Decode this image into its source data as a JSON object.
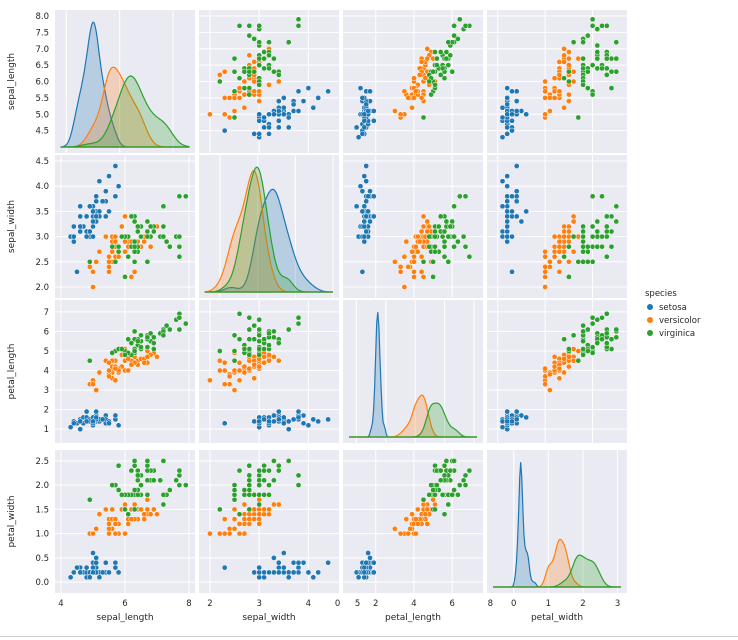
{
  "chart_data": {
    "type": "scatter",
    "variables": [
      "sepal_length",
      "sepal_width",
      "petal_length",
      "petal_width"
    ],
    "axes": {
      "sepal_length": {
        "label": "sepal_length",
        "range": [
          4.0,
          8.0
        ],
        "ticks": [
          "4.5",
          "5.0",
          "5.5",
          "6.0",
          "6.5",
          "7.0",
          "7.5",
          "8.0"
        ],
        "xticks": [
          "4",
          "6",
          "8"
        ]
      },
      "sepal_width": {
        "label": "sepal_width",
        "range": [
          1.9,
          4.5
        ],
        "ticks": [
          "2.0",
          "2.5",
          "3.0",
          "3.5",
          "4.0",
          "4.5"
        ],
        "xticks": [
          "2",
          "3",
          "4",
          "5"
        ]
      },
      "petal_length": {
        "label": "petal_length",
        "range": [
          0.6,
          7.3
        ],
        "ticks": [
          "1",
          "2",
          "3",
          "4",
          "5",
          "6",
          "7"
        ],
        "xticks": [
          "0",
          "2",
          "4",
          "6",
          "8"
        ]
      },
      "petal_width": {
        "label": "petal_width",
        "range": [
          -0.1,
          2.6
        ],
        "ticks": [
          "0.0",
          "0.5",
          "1.0",
          "1.5",
          "2.0",
          "2.5"
        ],
        "xticks": [
          "0",
          "1",
          "2",
          "3"
        ]
      }
    },
    "diag_x_ranges": {
      "sepal_length": [
        3.8,
        8.6
      ],
      "sepal_width": [
        1.6,
        5.0
      ],
      "petal_length": [
        -0.5,
        8.2
      ],
      "petal_width": [
        -0.6,
        3.1
      ]
    },
    "series": [
      {
        "name": "setosa",
        "color": "#1f77b4",
        "points": [
          [
            5.1,
            3.5,
            1.4,
            0.2
          ],
          [
            4.9,
            3.0,
            1.4,
            0.2
          ],
          [
            4.7,
            3.2,
            1.3,
            0.2
          ],
          [
            4.6,
            3.1,
            1.5,
            0.2
          ],
          [
            5.0,
            3.6,
            1.4,
            0.2
          ],
          [
            5.4,
            3.9,
            1.7,
            0.4
          ],
          [
            4.6,
            3.4,
            1.4,
            0.3
          ],
          [
            5.0,
            3.4,
            1.5,
            0.2
          ],
          [
            4.4,
            2.9,
            1.4,
            0.2
          ],
          [
            4.9,
            3.1,
            1.5,
            0.1
          ],
          [
            5.4,
            3.7,
            1.5,
            0.2
          ],
          [
            4.8,
            3.4,
            1.6,
            0.2
          ],
          [
            4.8,
            3.0,
            1.4,
            0.1
          ],
          [
            4.3,
            3.0,
            1.1,
            0.1
          ],
          [
            5.8,
            4.0,
            1.2,
            0.2
          ],
          [
            5.7,
            4.4,
            1.5,
            0.4
          ],
          [
            5.4,
            3.9,
            1.3,
            0.4
          ],
          [
            5.1,
            3.5,
            1.4,
            0.3
          ],
          [
            5.7,
            3.8,
            1.7,
            0.3
          ],
          [
            5.1,
            3.8,
            1.5,
            0.3
          ],
          [
            5.4,
            3.4,
            1.7,
            0.2
          ],
          [
            5.1,
            3.7,
            1.5,
            0.4
          ],
          [
            4.6,
            3.6,
            1.0,
            0.2
          ],
          [
            5.1,
            3.3,
            1.7,
            0.5
          ],
          [
            4.8,
            3.4,
            1.9,
            0.2
          ],
          [
            5.0,
            3.0,
            1.6,
            0.2
          ],
          [
            5.0,
            3.4,
            1.6,
            0.4
          ],
          [
            5.2,
            3.5,
            1.5,
            0.2
          ],
          [
            5.2,
            3.4,
            1.4,
            0.2
          ],
          [
            4.7,
            3.2,
            1.6,
            0.2
          ],
          [
            4.8,
            3.1,
            1.6,
            0.2
          ],
          [
            5.4,
            3.4,
            1.5,
            0.4
          ],
          [
            5.2,
            4.1,
            1.5,
            0.1
          ],
          [
            5.5,
            4.2,
            1.4,
            0.2
          ],
          [
            4.9,
            3.1,
            1.5,
            0.2
          ],
          [
            5.0,
            3.2,
            1.2,
            0.2
          ],
          [
            5.5,
            3.5,
            1.3,
            0.2
          ],
          [
            4.9,
            3.6,
            1.4,
            0.1
          ],
          [
            4.4,
            3.0,
            1.3,
            0.2
          ],
          [
            5.1,
            3.4,
            1.5,
            0.2
          ],
          [
            5.0,
            3.5,
            1.3,
            0.3
          ],
          [
            4.5,
            2.3,
            1.3,
            0.3
          ],
          [
            4.4,
            3.2,
            1.3,
            0.2
          ],
          [
            5.0,
            3.5,
            1.6,
            0.6
          ],
          [
            5.1,
            3.8,
            1.9,
            0.4
          ],
          [
            4.8,
            3.0,
            1.4,
            0.3
          ],
          [
            5.1,
            3.8,
            1.6,
            0.2
          ],
          [
            4.6,
            3.2,
            1.4,
            0.2
          ],
          [
            5.3,
            3.7,
            1.5,
            0.2
          ],
          [
            5.0,
            3.3,
            1.4,
            0.2
          ]
        ]
      },
      {
        "name": "versicolor",
        "color": "#ff7f0e",
        "points": [
          [
            7.0,
            3.2,
            4.7,
            1.4
          ],
          [
            6.4,
            3.2,
            4.5,
            1.5
          ],
          [
            6.9,
            3.1,
            4.9,
            1.5
          ],
          [
            5.5,
            2.3,
            4.0,
            1.3
          ],
          [
            6.5,
            2.8,
            4.6,
            1.5
          ],
          [
            5.7,
            2.8,
            4.5,
            1.3
          ],
          [
            6.3,
            3.3,
            4.7,
            1.6
          ],
          [
            4.9,
            2.4,
            3.3,
            1.0
          ],
          [
            6.6,
            2.9,
            4.6,
            1.3
          ],
          [
            5.2,
            2.7,
            3.9,
            1.4
          ],
          [
            5.0,
            2.0,
            3.5,
            1.0
          ],
          [
            5.9,
            3.0,
            4.2,
            1.5
          ],
          [
            6.0,
            2.2,
            4.0,
            1.0
          ],
          [
            6.1,
            2.9,
            4.7,
            1.4
          ],
          [
            5.6,
            2.9,
            3.6,
            1.3
          ],
          [
            6.7,
            3.1,
            4.4,
            1.4
          ],
          [
            5.6,
            3.0,
            4.5,
            1.5
          ],
          [
            5.8,
            2.7,
            4.1,
            1.0
          ],
          [
            6.2,
            2.2,
            4.5,
            1.5
          ],
          [
            5.6,
            2.5,
            3.9,
            1.1
          ],
          [
            5.9,
            3.2,
            4.8,
            1.8
          ],
          [
            6.1,
            2.8,
            4.0,
            1.3
          ],
          [
            6.3,
            2.5,
            4.9,
            1.5
          ],
          [
            6.1,
            2.8,
            4.7,
            1.2
          ],
          [
            6.4,
            2.9,
            4.3,
            1.3
          ],
          [
            6.6,
            3.0,
            4.4,
            1.4
          ],
          [
            6.8,
            2.8,
            4.8,
            1.4
          ],
          [
            6.7,
            3.0,
            5.0,
            1.7
          ],
          [
            6.0,
            2.9,
            4.5,
            1.5
          ],
          [
            5.7,
            2.6,
            3.5,
            1.0
          ],
          [
            5.5,
            2.4,
            3.8,
            1.1
          ],
          [
            5.5,
            2.4,
            3.7,
            1.0
          ],
          [
            5.8,
            2.7,
            3.9,
            1.2
          ],
          [
            6.0,
            2.7,
            5.1,
            1.6
          ],
          [
            5.4,
            3.0,
            4.5,
            1.5
          ],
          [
            6.0,
            3.4,
            4.5,
            1.6
          ],
          [
            6.7,
            3.1,
            4.7,
            1.5
          ],
          [
            6.3,
            2.3,
            4.4,
            1.3
          ],
          [
            5.6,
            3.0,
            4.1,
            1.3
          ],
          [
            5.5,
            2.5,
            4.0,
            1.3
          ],
          [
            5.5,
            2.6,
            4.4,
            1.2
          ],
          [
            6.1,
            3.0,
            4.6,
            1.4
          ],
          [
            5.8,
            2.6,
            4.0,
            1.2
          ],
          [
            5.0,
            2.3,
            3.3,
            1.0
          ],
          [
            5.6,
            2.7,
            4.2,
            1.3
          ],
          [
            5.7,
            3.0,
            4.2,
            1.2
          ],
          [
            5.7,
            2.9,
            4.2,
            1.3
          ],
          [
            6.2,
            2.9,
            4.3,
            1.3
          ],
          [
            5.1,
            2.5,
            3.0,
            1.1
          ],
          [
            5.7,
            2.8,
            4.1,
            1.3
          ]
        ]
      },
      {
        "name": "virginica",
        "color": "#2ca02c",
        "points": [
          [
            6.3,
            3.3,
            6.0,
            2.5
          ],
          [
            5.8,
            2.7,
            5.1,
            1.9
          ],
          [
            7.1,
            3.0,
            5.9,
            2.1
          ],
          [
            6.3,
            2.9,
            5.6,
            1.8
          ],
          [
            6.5,
            3.0,
            5.8,
            2.2
          ],
          [
            7.6,
            3.0,
            6.6,
            2.1
          ],
          [
            4.9,
            2.5,
            4.5,
            1.7
          ],
          [
            7.3,
            2.9,
            6.3,
            1.8
          ],
          [
            6.7,
            2.5,
            5.8,
            1.8
          ],
          [
            7.2,
            3.6,
            6.1,
            2.5
          ],
          [
            6.5,
            3.2,
            5.1,
            2.0
          ],
          [
            6.4,
            2.7,
            5.3,
            1.9
          ],
          [
            6.8,
            3.0,
            5.5,
            2.1
          ],
          [
            5.7,
            2.5,
            5.0,
            2.0
          ],
          [
            5.8,
            2.8,
            5.1,
            2.4
          ],
          [
            6.4,
            3.2,
            5.3,
            2.3
          ],
          [
            6.5,
            3.0,
            5.5,
            1.8
          ],
          [
            7.7,
            3.8,
            6.7,
            2.2
          ],
          [
            7.7,
            2.6,
            6.9,
            2.3
          ],
          [
            6.0,
            2.2,
            5.0,
            1.5
          ],
          [
            6.9,
            3.2,
            5.7,
            2.3
          ],
          [
            5.6,
            2.8,
            4.9,
            2.0
          ],
          [
            7.7,
            2.8,
            6.7,
            2.0
          ],
          [
            6.3,
            2.7,
            4.9,
            1.8
          ],
          [
            6.7,
            3.3,
            5.7,
            2.1
          ],
          [
            7.2,
            3.2,
            6.0,
            1.8
          ],
          [
            6.2,
            2.8,
            4.8,
            1.8
          ],
          [
            6.1,
            3.0,
            4.9,
            1.8
          ],
          [
            6.4,
            2.8,
            5.6,
            2.1
          ],
          [
            7.2,
            3.0,
            5.8,
            1.6
          ],
          [
            7.4,
            2.8,
            6.1,
            1.9
          ],
          [
            7.9,
            3.8,
            6.4,
            2.0
          ],
          [
            6.4,
            2.8,
            5.6,
            2.2
          ],
          [
            6.3,
            2.8,
            5.1,
            1.5
          ],
          [
            6.1,
            2.6,
            5.6,
            1.4
          ],
          [
            7.7,
            3.0,
            6.1,
            2.3
          ],
          [
            6.3,
            3.4,
            5.6,
            2.4
          ],
          [
            6.4,
            3.1,
            5.5,
            1.8
          ],
          [
            6.0,
            3.0,
            4.8,
            1.8
          ],
          [
            6.9,
            3.1,
            5.4,
            2.1
          ],
          [
            6.7,
            3.1,
            5.6,
            2.4
          ],
          [
            6.9,
            3.1,
            5.1,
            2.3
          ],
          [
            5.8,
            2.7,
            5.1,
            1.9
          ],
          [
            6.8,
            3.2,
            5.9,
            2.3
          ],
          [
            6.7,
            3.3,
            5.7,
            2.5
          ],
          [
            6.7,
            3.0,
            5.2,
            2.3
          ],
          [
            6.3,
            2.5,
            5.0,
            1.9
          ],
          [
            6.5,
            3.0,
            5.2,
            2.0
          ],
          [
            6.2,
            3.4,
            5.4,
            2.3
          ],
          [
            5.9,
            3.0,
            5.1,
            1.8
          ]
        ]
      }
    ],
    "diagonal": "kde",
    "grid": true,
    "legend": {
      "title": "species",
      "entries": [
        "setosa",
        "versicolor",
        "virginica"
      ],
      "placement": "right"
    }
  }
}
